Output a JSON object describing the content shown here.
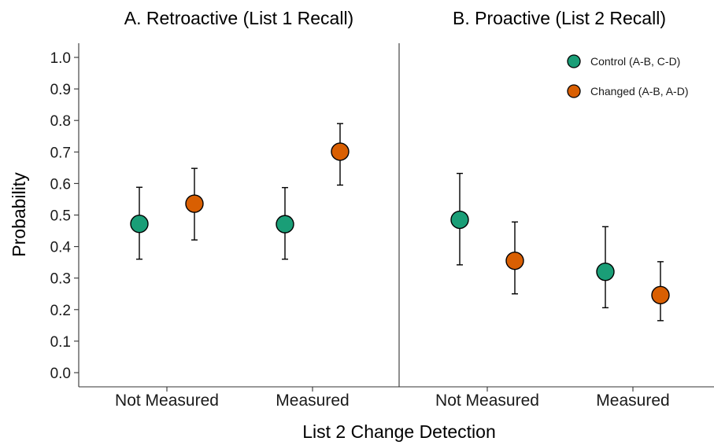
{
  "chart_data": {
    "type": "scatter",
    "ylabel": "Probability",
    "xlabel": "List 2 Change Detection",
    "ylim": [
      0.0,
      1.0
    ],
    "yticks": [
      "0.0",
      "0.1",
      "0.2",
      "0.3",
      "0.4",
      "0.5",
      "0.6",
      "0.7",
      "0.8",
      "0.9",
      "1.0"
    ],
    "categories": [
      "Not Measured",
      "Measured"
    ],
    "legend": {
      "position": "top-right"
    },
    "series": [
      {
        "name": "Control (A-B, C-D)",
        "color": "#1a9e77"
      },
      {
        "name": "Changed (A-B, A-D)",
        "color": "#d95f02"
      }
    ],
    "panels": [
      {
        "title": "A. Retroactive (List 1 Recall)",
        "points": [
          {
            "category": "Not Measured",
            "series": "Control (A-B, C-D)",
            "y": 0.472,
            "lower": 0.36,
            "upper": 0.588
          },
          {
            "category": "Not Measured",
            "series": "Changed (A-B, A-D)",
            "y": 0.536,
            "lower": 0.421,
            "upper": 0.648
          },
          {
            "category": "Measured",
            "series": "Control (A-B, C-D)",
            "y": 0.471,
            "lower": 0.36,
            "upper": 0.587
          },
          {
            "category": "Measured",
            "series": "Changed (A-B, A-D)",
            "y": 0.701,
            "lower": 0.595,
            "upper": 0.79
          }
        ]
      },
      {
        "title": "B. Proactive (List 2 Recall)",
        "points": [
          {
            "category": "Not Measured",
            "series": "Control (A-B, C-D)",
            "y": 0.485,
            "lower": 0.342,
            "upper": 0.632
          },
          {
            "category": "Not Measured",
            "series": "Changed (A-B, A-D)",
            "y": 0.355,
            "lower": 0.25,
            "upper": 0.478
          },
          {
            "category": "Measured",
            "series": "Control (A-B, C-D)",
            "y": 0.32,
            "lower": 0.206,
            "upper": 0.463
          },
          {
            "category": "Measured",
            "series": "Changed (A-B, A-D)",
            "y": 0.246,
            "lower": 0.165,
            "upper": 0.352
          }
        ]
      }
    ]
  }
}
